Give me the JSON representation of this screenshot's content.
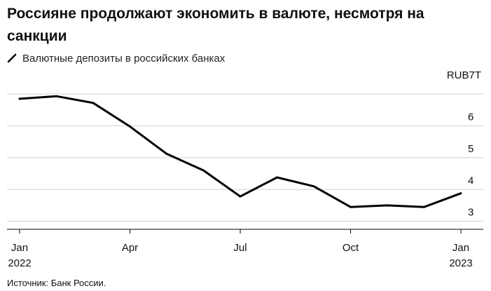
{
  "chart_data": {
    "type": "line",
    "title": "Россияне продолжают экономить в валюте, несмотря на санкции",
    "series": [
      {
        "name": "Валютные депозиты в российских банках",
        "color": "#000000",
        "values": [
          6.85,
          6.93,
          6.72,
          5.98,
          5.12,
          4.6,
          3.78,
          4.38,
          4.1,
          3.45,
          3.5,
          3.45,
          3.88
        ]
      }
    ],
    "x": [
      "2022-01",
      "2022-02",
      "2022-03",
      "2022-04",
      "2022-05",
      "2022-06",
      "2022-07",
      "2022-08",
      "2022-09",
      "2022-10",
      "2022-11",
      "2022-12",
      "2023-01"
    ],
    "x_ticks": [
      {
        "label": "Jan",
        "sublabel": "2022",
        "index": 0
      },
      {
        "label": "Apr",
        "sublabel": "",
        "index": 3
      },
      {
        "label": "Jul",
        "sublabel": "",
        "index": 6
      },
      {
        "label": "Oct",
        "sublabel": "",
        "index": 9
      },
      {
        "label": "Jan",
        "sublabel": "2023",
        "index": 12
      }
    ],
    "y_ticks": [
      3,
      4,
      5,
      6
    ],
    "ylim": [
      2.75,
      7.75
    ],
    "y_unit": "RUB7T",
    "grid": true,
    "y_axis_side": "right",
    "legend_position": "top-left",
    "source": "Источник: Банк России."
  }
}
